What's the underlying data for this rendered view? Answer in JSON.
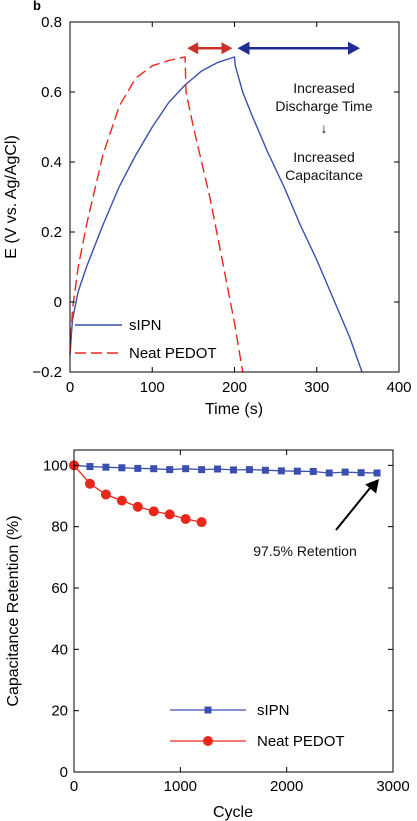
{
  "panel_letter": "b",
  "chart_data": [
    {
      "type": "line",
      "title": "",
      "xlabel": "Time (s)",
      "ylabel": "E (V vs. Ag/AgCl)",
      "xlim": [
        0,
        400
      ],
      "ylim": [
        -0.2,
        0.8
      ],
      "xticks": [
        0,
        100,
        200,
        300,
        400
      ],
      "yticks": [
        -0.2,
        0,
        0.2,
        0.4,
        0.6,
        0.8
      ],
      "ytick_labels": [
        "−0.2",
        "0",
        "0.2",
        "0.4",
        "0.6",
        "0.8"
      ],
      "grid": false,
      "legend_position": "bottom-left",
      "series": [
        {
          "name": "sIPN",
          "color": "#3a4fb0",
          "style": "solid",
          "x": [
            0,
            3,
            10,
            20,
            40,
            60,
            80,
            100,
            120,
            140,
            160,
            180,
            200,
            201,
            210,
            220,
            240,
            260,
            280,
            300,
            320,
            340,
            355
          ],
          "y": [
            -0.15,
            -0.05,
            0.03,
            0.1,
            0.22,
            0.33,
            0.42,
            0.5,
            0.57,
            0.62,
            0.66,
            0.685,
            0.7,
            0.675,
            0.6,
            0.54,
            0.43,
            0.33,
            0.22,
            0.12,
            0.01,
            -0.1,
            -0.2
          ]
        },
        {
          "name": "Neat PEDOT",
          "color": "#e8281c",
          "style": "dashed",
          "x": [
            0,
            3,
            10,
            20,
            40,
            60,
            80,
            100,
            120,
            140,
            141,
            150,
            160,
            170,
            180,
            190,
            200,
            210
          ],
          "y": [
            -0.15,
            -0.02,
            0.1,
            0.22,
            0.42,
            0.56,
            0.64,
            0.675,
            0.69,
            0.7,
            0.6,
            0.5,
            0.4,
            0.3,
            0.18,
            0.06,
            -0.06,
            -0.2
          ]
        }
      ],
      "annotations": {
        "lines": [
          "Increased",
          "Discharge Time",
          "Increased",
          "Capacitance"
        ],
        "arrow_symbol": "↓",
        "red_arrow_x": [
          140,
          200
        ],
        "blue_arrow_x": [
          200,
          355
        ],
        "arrow_y": 0.725,
        "red_arrow_color": "#c8322a",
        "blue_arrow_color": "#1f2e96"
      }
    },
    {
      "type": "line",
      "title": "",
      "xlabel": "Cycle",
      "ylabel": "Capacitance Retention (%)",
      "xlim": [
        0,
        3000
      ],
      "ylim": [
        0,
        105
      ],
      "xticks": [
        0,
        1000,
        2000,
        3000
      ],
      "yticks": [
        0,
        20,
        40,
        60,
        80,
        100
      ],
      "grid": false,
      "legend_position": "bottom-right",
      "series": [
        {
          "name": "sIPN",
          "color": "#3a4fb0",
          "marker": "square",
          "x": [
            0,
            150,
            300,
            450,
            600,
            750,
            900,
            1050,
            1200,
            1350,
            1500,
            1650,
            1800,
            1950,
            2100,
            2250,
            2400,
            2550,
            2700,
            2850
          ],
          "y": [
            100,
            99.6,
            99.4,
            99.2,
            99,
            98.9,
            98.6,
            98.9,
            98.6,
            98.8,
            98.5,
            98.6,
            98.4,
            98.2,
            98.1,
            98.0,
            97.5,
            97.8,
            97.6,
            97.5
          ]
        },
        {
          "name": "Neat PEDOT",
          "color": "#e8281c",
          "marker": "circle",
          "x": [
            0,
            150,
            300,
            450,
            600,
            750,
            900,
            1050,
            1200
          ],
          "y": [
            100,
            94,
            90.5,
            88.5,
            86.5,
            85,
            84,
            82.5,
            81.5
          ]
        }
      ],
      "annotation": {
        "text": "97.5% Retention",
        "target_x": 2850,
        "target_y": 97.5,
        "color": "#000000"
      }
    }
  ]
}
